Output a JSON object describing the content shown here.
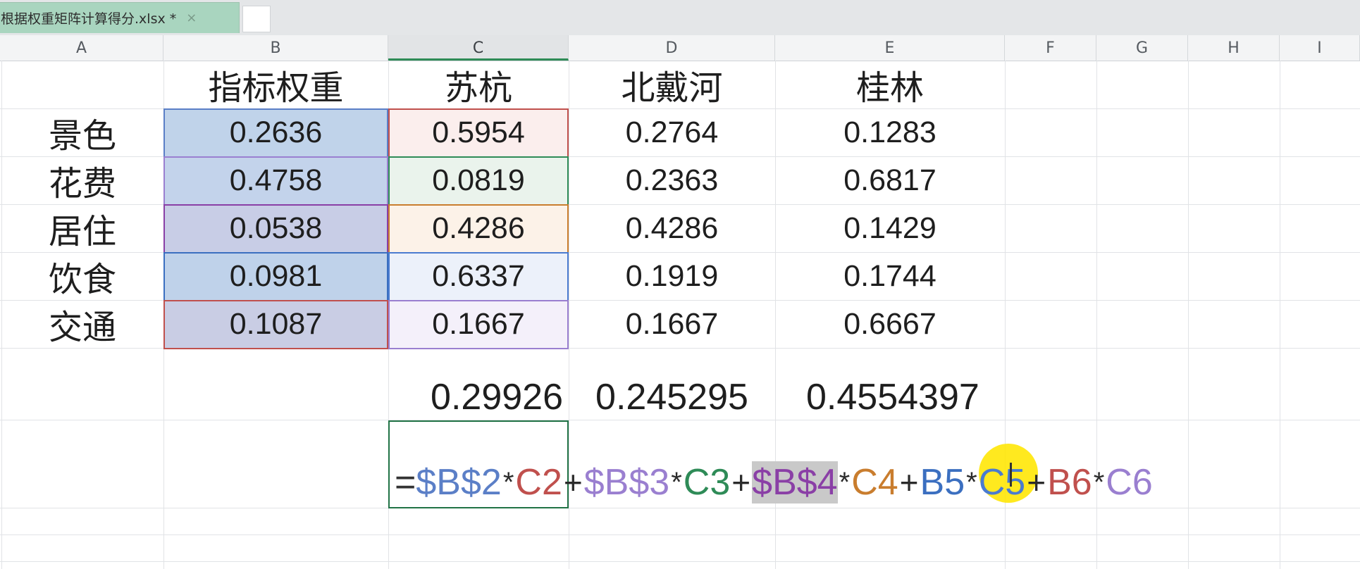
{
  "tabs": {
    "file_name": "根据权重矩阵计算得分.xlsx *",
    "close_glyph": "×"
  },
  "columns": [
    "A",
    "B",
    "C",
    "D",
    "E",
    "F",
    "G",
    "H",
    "I"
  ],
  "header_row": [
    "",
    "指标权重",
    "苏杭",
    "北戴河",
    "桂林"
  ],
  "rows": [
    {
      "label": "景色",
      "weight": "0.2636",
      "suhang": "0.5954",
      "beidaihe": "0.2764",
      "guilin": "0.1283"
    },
    {
      "label": "花费",
      "weight": "0.4758",
      "suhang": "0.0819",
      "beidaihe": "0.2363",
      "guilin": "0.6817"
    },
    {
      "label": "居住",
      "weight": "0.0538",
      "suhang": "0.4286",
      "beidaihe": "0.4286",
      "guilin": "0.1429"
    },
    {
      "label": "饮食",
      "weight": "0.0981",
      "suhang": "0.6337",
      "beidaihe": "0.1919",
      "guilin": "0.1744"
    },
    {
      "label": "交通",
      "weight": "0.1087",
      "suhang": "0.1667",
      "beidaihe": "0.1667",
      "guilin": "0.6667"
    }
  ],
  "scores": {
    "suhang": "0.29926",
    "beidaihe": "0.245295",
    "guilin": "0.4554397"
  },
  "formula": {
    "eq": "=",
    "t1_ref": "$B$2",
    "t1_cell": "C2",
    "t2_ref": "$B$3",
    "t2_cell": "C3",
    "t3_ref": "$B$4",
    "t3_cell": "C4",
    "t4_ref": "B5",
    "t4_cell": "C5",
    "t5_ref": "B6",
    "t5_cell": "C6",
    "plus": "+",
    "times": "*"
  },
  "colors": {
    "ref1": "#5b7fc7",
    "ref2": "#9a7fd0",
    "ref3": "#8a3fa6",
    "ref4": "#3b6fc0",
    "ref5": "#c0504d",
    "cellC2": "#c0504d",
    "cellC3": "#2e8b57",
    "cellC4": "#c97d2e",
    "cellC5": "#4a7bd0",
    "cellC6": "#9a7fd0",
    "selected_border": "#217346",
    "tab_bg": "#a9d5bf"
  }
}
